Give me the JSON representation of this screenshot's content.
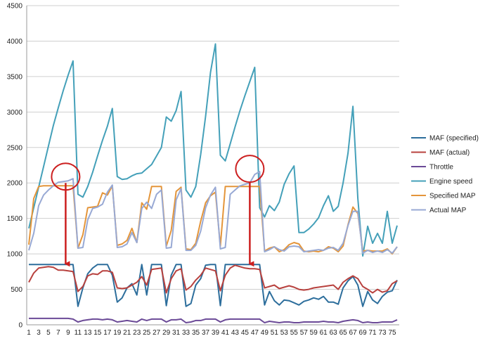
{
  "chart_data": {
    "type": "line",
    "title": "",
    "xlabel": "",
    "ylabel": "",
    "ylim": [
      0,
      4500
    ],
    "yticks": [
      0,
      500,
      1000,
      1500,
      2000,
      2500,
      3000,
      3500,
      4000,
      4500
    ],
    "xlim": [
      1,
      76
    ],
    "xtick_labels": [
      "1",
      "3",
      "5",
      "7",
      "9",
      "11",
      "13",
      "15",
      "17",
      "19",
      "21",
      "23",
      "25",
      "27",
      "29",
      "31",
      "33",
      "35",
      "37",
      "39",
      "41",
      "43",
      "45",
      "47",
      "49",
      "51",
      "53",
      "55",
      "57",
      "59",
      "61",
      "63",
      "65",
      "67",
      "69",
      "71",
      "73",
      "75"
    ],
    "grid": "horizontal",
    "legend_position": "right",
    "x": [
      1,
      2,
      3,
      4,
      5,
      6,
      7,
      8,
      9,
      10,
      11,
      12,
      13,
      14,
      15,
      16,
      17,
      18,
      19,
      20,
      21,
      22,
      23,
      24,
      25,
      26,
      27,
      28,
      29,
      30,
      31,
      32,
      33,
      34,
      35,
      36,
      37,
      38,
      39,
      40,
      41,
      42,
      43,
      44,
      45,
      46,
      47,
      48,
      49,
      50,
      51,
      52,
      53,
      54,
      55,
      56,
      57,
      58,
      59,
      60,
      61,
      62,
      63,
      64,
      65,
      66,
      67,
      68,
      69,
      70,
      71,
      72,
      73,
      74,
      75,
      76
    ],
    "series": [
      {
        "name": "MAF (specified)",
        "color": "#2d6e9c",
        "values": [
          850,
          850,
          850,
          850,
          850,
          850,
          850,
          850,
          850,
          850,
          260,
          520,
          720,
          800,
          850,
          850,
          850,
          700,
          320,
          380,
          520,
          580,
          420,
          850,
          420,
          850,
          850,
          850,
          270,
          700,
          850,
          850,
          260,
          300,
          560,
          650,
          840,
          850,
          850,
          270,
          850,
          850,
          850,
          850,
          850,
          850,
          850,
          850,
          280,
          470,
          340,
          280,
          350,
          340,
          310,
          280,
          330,
          350,
          380,
          360,
          400,
          320,
          320,
          290,
          520,
          620,
          680,
          560,
          260,
          470,
          350,
          300,
          400,
          460,
          480,
          630
        ]
      },
      {
        "name": "MAF (actual)",
        "color": "#b8413e",
        "values": [
          600,
          730,
          800,
          810,
          820,
          810,
          770,
          770,
          760,
          750,
          470,
          540,
          690,
          720,
          710,
          760,
          760,
          740,
          520,
          510,
          520,
          560,
          600,
          680,
          560,
          780,
          790,
          800,
          450,
          650,
          760,
          790,
          490,
          540,
          630,
          700,
          800,
          780,
          760,
          480,
          700,
          800,
          840,
          820,
          800,
          790,
          790,
          780,
          520,
          540,
          560,
          510,
          530,
          550,
          530,
          500,
          490,
          500,
          520,
          530,
          540,
          550,
          560,
          500,
          600,
          650,
          690,
          650,
          540,
          500,
          450,
          500,
          460,
          480,
          580,
          620
        ]
      },
      {
        "name": "Throttle",
        "color": "#6b4a97",
        "values": [
          90,
          90,
          90,
          90,
          90,
          90,
          90,
          90,
          90,
          80,
          40,
          60,
          70,
          80,
          80,
          70,
          80,
          70,
          40,
          50,
          60,
          50,
          40,
          80,
          60,
          80,
          80,
          80,
          40,
          70,
          70,
          80,
          30,
          40,
          60,
          60,
          80,
          80,
          80,
          40,
          70,
          80,
          80,
          80,
          80,
          80,
          80,
          80,
          30,
          50,
          40,
          30,
          40,
          40,
          30,
          30,
          40,
          40,
          40,
          40,
          50,
          40,
          40,
          30,
          50,
          60,
          70,
          60,
          30,
          40,
          30,
          30,
          40,
          40,
          40,
          70
        ]
      },
      {
        "name": "Engine speed",
        "color": "#44a0b9",
        "values": [
          1360,
          1650,
          1940,
          2230,
          2520,
          2810,
          3060,
          3300,
          3520,
          3720,
          1840,
          1800,
          1950,
          2150,
          2380,
          2600,
          2800,
          3050,
          2090,
          2050,
          2060,
          2100,
          2130,
          2140,
          2200,
          2260,
          2380,
          2500,
          2930,
          2870,
          3020,
          3290,
          1900,
          1800,
          1950,
          2400,
          2940,
          3560,
          3960,
          2390,
          2310,
          2550,
          2790,
          3020,
          3230,
          3430,
          3630,
          1650,
          1520,
          1680,
          1610,
          1730,
          1980,
          2130,
          2240,
          1300,
          1300,
          1350,
          1420,
          1510,
          1680,
          1820,
          1600,
          1670,
          2000,
          2420,
          3080,
          1780,
          970,
          1390,
          1150,
          1290,
          1150,
          1600,
          1150,
          1400
        ]
      },
      {
        "name": "Specified MAP",
        "color": "#e4953a",
        "values": [
          1130,
          1780,
          1950,
          1960,
          1960,
          1960,
          1960,
          1960,
          1960,
          1960,
          1080,
          1270,
          1650,
          1660,
          1670,
          1860,
          1830,
          1960,
          1120,
          1140,
          1190,
          1360,
          1160,
          1720,
          1630,
          1950,
          1950,
          1950,
          1110,
          1330,
          1880,
          1940,
          1070,
          1060,
          1150,
          1460,
          1720,
          1820,
          1870,
          1110,
          1950,
          1950,
          1950,
          1950,
          1950,
          1950,
          1950,
          1950,
          1040,
          1080,
          1100,
          1030,
          1060,
          1130,
          1160,
          1140,
          1040,
          1030,
          1040,
          1030,
          1050,
          1100,
          1080,
          1030,
          1110,
          1410,
          1660,
          1570,
          1040,
          1050,
          1040,
          1040,
          1040,
          1070,
          1000,
          1100
        ]
      },
      {
        "name": "Actual MAP",
        "color": "#98a9d4",
        "values": [
          1050,
          1290,
          1680,
          1830,
          1900,
          1960,
          2010,
          2020,
          2030,
          2060,
          1080,
          1090,
          1480,
          1640,
          1660,
          1700,
          1870,
          1970,
          1090,
          1100,
          1140,
          1300,
          1160,
          1640,
          1730,
          1640,
          1840,
          1900,
          1080,
          1090,
          1760,
          1920,
          1050,
          1050,
          1120,
          1320,
          1650,
          1830,
          1940,
          1070,
          1090,
          1840,
          1900,
          1960,
          1980,
          2000,
          2120,
          2160,
          1030,
          1060,
          1100,
          1060,
          1040,
          1100,
          1110,
          1100,
          1030,
          1040,
          1050,
          1060,
          1050,
          1080,
          1090,
          1050,
          1150,
          1400,
          1600,
          1600,
          1010,
          1050,
          1020,
          1040,
          1020,
          1060,
          1010,
          1100
        ]
      }
    ],
    "annotations": [
      {
        "type": "circle",
        "x": 8.5,
        "y": 2030
      },
      {
        "type": "circle",
        "x": 46,
        "y": 2140
      },
      {
        "type": "arrow",
        "x": 8.5,
        "y_from": 2000,
        "y_to": 780
      },
      {
        "type": "arrow",
        "x": 46,
        "y_from": 2020,
        "y_to": 780
      }
    ],
    "annotation_color": "#cc1f1f"
  }
}
